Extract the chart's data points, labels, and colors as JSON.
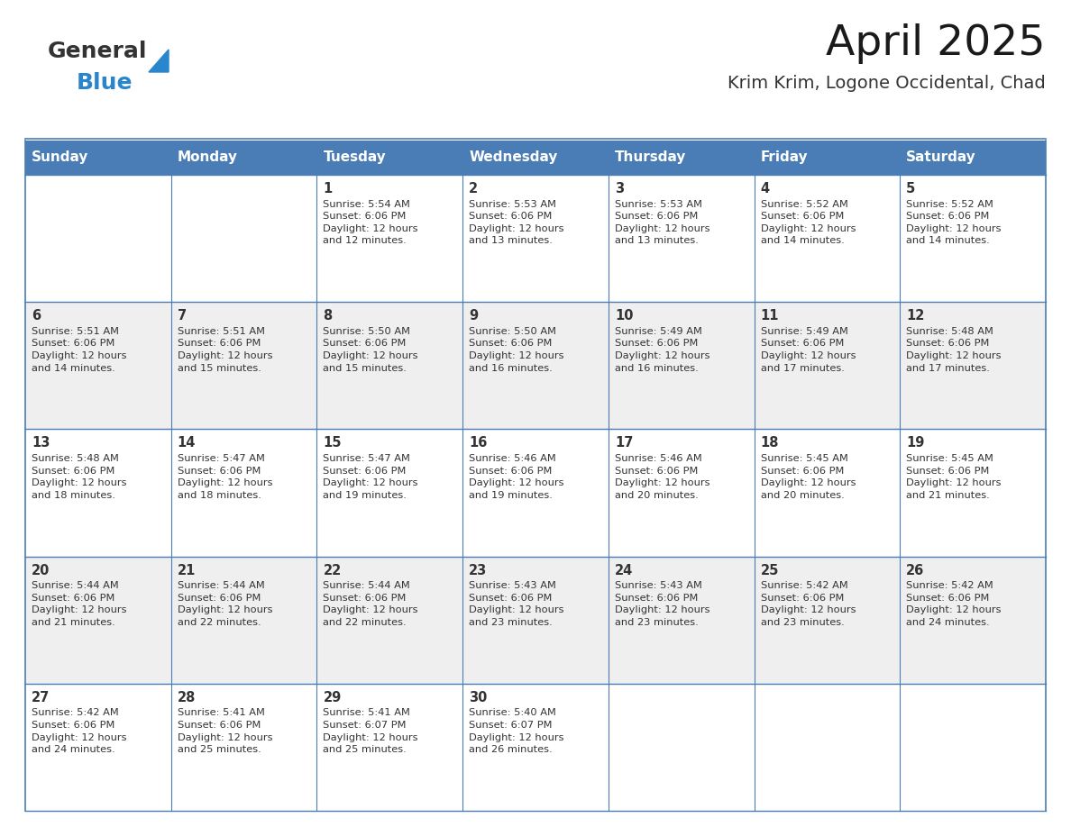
{
  "title": "April 2025",
  "subtitle": "Krim Krim, Logone Occidental, Chad",
  "days_of_week": [
    "Sunday",
    "Monday",
    "Tuesday",
    "Wednesday",
    "Thursday",
    "Friday",
    "Saturday"
  ],
  "header_bg": "#4A7DB5",
  "header_text": "#FFFFFF",
  "row_bg_light": "#EFEFEF",
  "row_bg_white": "#FFFFFF",
  "border_color": "#4A7DB5",
  "text_color": "#333333",
  "cell_border_color": "#4A7DB5",
  "calendar_data": [
    [
      {
        "day": "",
        "info": ""
      },
      {
        "day": "",
        "info": ""
      },
      {
        "day": "1",
        "info": "Sunrise: 5:54 AM\nSunset: 6:06 PM\nDaylight: 12 hours\nand 12 minutes."
      },
      {
        "day": "2",
        "info": "Sunrise: 5:53 AM\nSunset: 6:06 PM\nDaylight: 12 hours\nand 13 minutes."
      },
      {
        "day": "3",
        "info": "Sunrise: 5:53 AM\nSunset: 6:06 PM\nDaylight: 12 hours\nand 13 minutes."
      },
      {
        "day": "4",
        "info": "Sunrise: 5:52 AM\nSunset: 6:06 PM\nDaylight: 12 hours\nand 14 minutes."
      },
      {
        "day": "5",
        "info": "Sunrise: 5:52 AM\nSunset: 6:06 PM\nDaylight: 12 hours\nand 14 minutes."
      }
    ],
    [
      {
        "day": "6",
        "info": "Sunrise: 5:51 AM\nSunset: 6:06 PM\nDaylight: 12 hours\nand 14 minutes."
      },
      {
        "day": "7",
        "info": "Sunrise: 5:51 AM\nSunset: 6:06 PM\nDaylight: 12 hours\nand 15 minutes."
      },
      {
        "day": "8",
        "info": "Sunrise: 5:50 AM\nSunset: 6:06 PM\nDaylight: 12 hours\nand 15 minutes."
      },
      {
        "day": "9",
        "info": "Sunrise: 5:50 AM\nSunset: 6:06 PM\nDaylight: 12 hours\nand 16 minutes."
      },
      {
        "day": "10",
        "info": "Sunrise: 5:49 AM\nSunset: 6:06 PM\nDaylight: 12 hours\nand 16 minutes."
      },
      {
        "day": "11",
        "info": "Sunrise: 5:49 AM\nSunset: 6:06 PM\nDaylight: 12 hours\nand 17 minutes."
      },
      {
        "day": "12",
        "info": "Sunrise: 5:48 AM\nSunset: 6:06 PM\nDaylight: 12 hours\nand 17 minutes."
      }
    ],
    [
      {
        "day": "13",
        "info": "Sunrise: 5:48 AM\nSunset: 6:06 PM\nDaylight: 12 hours\nand 18 minutes."
      },
      {
        "day": "14",
        "info": "Sunrise: 5:47 AM\nSunset: 6:06 PM\nDaylight: 12 hours\nand 18 minutes."
      },
      {
        "day": "15",
        "info": "Sunrise: 5:47 AM\nSunset: 6:06 PM\nDaylight: 12 hours\nand 19 minutes."
      },
      {
        "day": "16",
        "info": "Sunrise: 5:46 AM\nSunset: 6:06 PM\nDaylight: 12 hours\nand 19 minutes."
      },
      {
        "day": "17",
        "info": "Sunrise: 5:46 AM\nSunset: 6:06 PM\nDaylight: 12 hours\nand 20 minutes."
      },
      {
        "day": "18",
        "info": "Sunrise: 5:45 AM\nSunset: 6:06 PM\nDaylight: 12 hours\nand 20 minutes."
      },
      {
        "day": "19",
        "info": "Sunrise: 5:45 AM\nSunset: 6:06 PM\nDaylight: 12 hours\nand 21 minutes."
      }
    ],
    [
      {
        "day": "20",
        "info": "Sunrise: 5:44 AM\nSunset: 6:06 PM\nDaylight: 12 hours\nand 21 minutes."
      },
      {
        "day": "21",
        "info": "Sunrise: 5:44 AM\nSunset: 6:06 PM\nDaylight: 12 hours\nand 22 minutes."
      },
      {
        "day": "22",
        "info": "Sunrise: 5:44 AM\nSunset: 6:06 PM\nDaylight: 12 hours\nand 22 minutes."
      },
      {
        "day": "23",
        "info": "Sunrise: 5:43 AM\nSunset: 6:06 PM\nDaylight: 12 hours\nand 23 minutes."
      },
      {
        "day": "24",
        "info": "Sunrise: 5:43 AM\nSunset: 6:06 PM\nDaylight: 12 hours\nand 23 minutes."
      },
      {
        "day": "25",
        "info": "Sunrise: 5:42 AM\nSunset: 6:06 PM\nDaylight: 12 hours\nand 23 minutes."
      },
      {
        "day": "26",
        "info": "Sunrise: 5:42 AM\nSunset: 6:06 PM\nDaylight: 12 hours\nand 24 minutes."
      }
    ],
    [
      {
        "day": "27",
        "info": "Sunrise: 5:42 AM\nSunset: 6:06 PM\nDaylight: 12 hours\nand 24 minutes."
      },
      {
        "day": "28",
        "info": "Sunrise: 5:41 AM\nSunset: 6:06 PM\nDaylight: 12 hours\nand 25 minutes."
      },
      {
        "day": "29",
        "info": "Sunrise: 5:41 AM\nSunset: 6:07 PM\nDaylight: 12 hours\nand 25 minutes."
      },
      {
        "day": "30",
        "info": "Sunrise: 5:40 AM\nSunset: 6:07 PM\nDaylight: 12 hours\nand 26 minutes."
      },
      {
        "day": "",
        "info": ""
      },
      {
        "day": "",
        "info": ""
      },
      {
        "day": "",
        "info": ""
      }
    ]
  ],
  "logo_text1": "General",
  "logo_text2": "Blue",
  "logo_color1": "#333333",
  "logo_color2": "#2986CC",
  "fig_width": 11.88,
  "fig_height": 9.18,
  "dpi": 100
}
